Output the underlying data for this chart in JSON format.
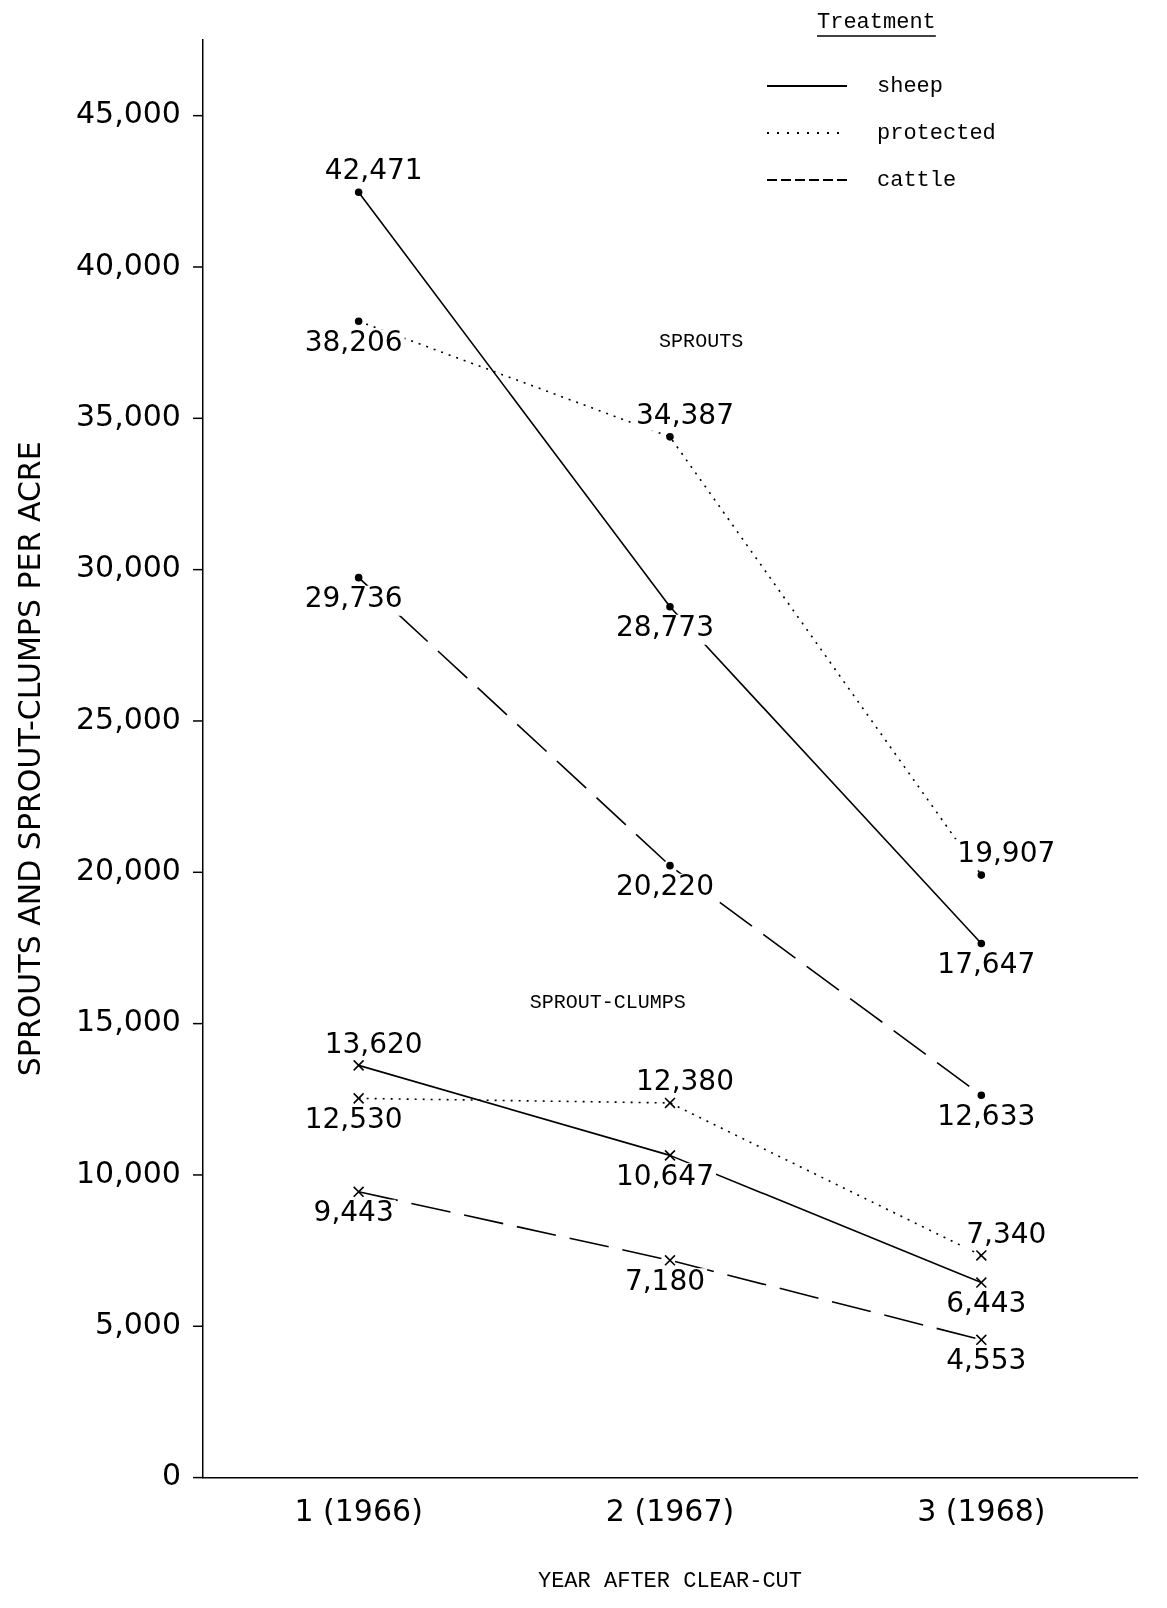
{
  "chart_data": {
    "type": "line",
    "xlabel": "YEAR AFTER CLEAR-CUT",
    "ylabel": "SPROUTS AND SPROUT-CLUMPS PER ACRE",
    "legend_title": "Treatment",
    "legend": "top right",
    "grid": false,
    "categories": [
      "1 (1966)",
      "2 (1967)",
      "3 (1968)"
    ],
    "ylim": [
      0,
      47500
    ],
    "yticks": [
      {
        "value": 0,
        "label": "0"
      },
      {
        "value": 5000,
        "label": "5,000"
      },
      {
        "value": 10000,
        "label": "10,000"
      },
      {
        "value": 15000,
        "label": "15,000"
      },
      {
        "value": 20000,
        "label": "20,000"
      },
      {
        "value": 25000,
        "label": "25,000"
      },
      {
        "value": 30000,
        "label": "30,000"
      },
      {
        "value": 35000,
        "label": "35,000"
      },
      {
        "value": 40000,
        "label": "40,000"
      },
      {
        "value": 45000,
        "label": "45,000"
      }
    ],
    "series": [
      {
        "name": "sheep",
        "color": "#000000",
        "line_style": "solid",
        "marker": "circle",
        "values": [
          42471,
          28773,
          17647
        ],
        "value_labels": [
          "42,471",
          "28,773",
          "17,647"
        ]
      },
      {
        "name": "protected",
        "color": "#000000",
        "line_style": "dotted",
        "marker": "circle",
        "values": [
          38206,
          34387,
          19907
        ],
        "value_labels": [
          "38,206",
          "34,387",
          "19,907"
        ]
      },
      {
        "name": "cattle",
        "color": "#000000",
        "line_style": "dashed",
        "marker": "circle",
        "values": [
          29736,
          20220,
          12633
        ],
        "value_labels": [
          "29,736",
          "20,220",
          "12,633"
        ]
      },
      {
        "color": "#000000",
        "line_style": "solid",
        "marker": "cross",
        "values": [
          13620,
          10647,
          6443
        ],
        "value_labels": [
          "13,620",
          "10,647",
          "6,443"
        ]
      },
      {
        "color": "#000000",
        "line_style": "dotted",
        "marker": "cross",
        "values": [
          12530,
          12380,
          7340
        ],
        "value_labels": [
          "12,530",
          "12,380",
          "7,340"
        ]
      },
      {
        "color": "#000000",
        "line_style": "dashed",
        "marker": "cross",
        "values": [
          9443,
          7180,
          4553
        ],
        "value_labels": [
          "9,443",
          "7,180",
          "4,553"
        ]
      }
    ],
    "annotations": [
      "SPROUTS",
      "SPROUT-CLUMPS"
    ]
  }
}
